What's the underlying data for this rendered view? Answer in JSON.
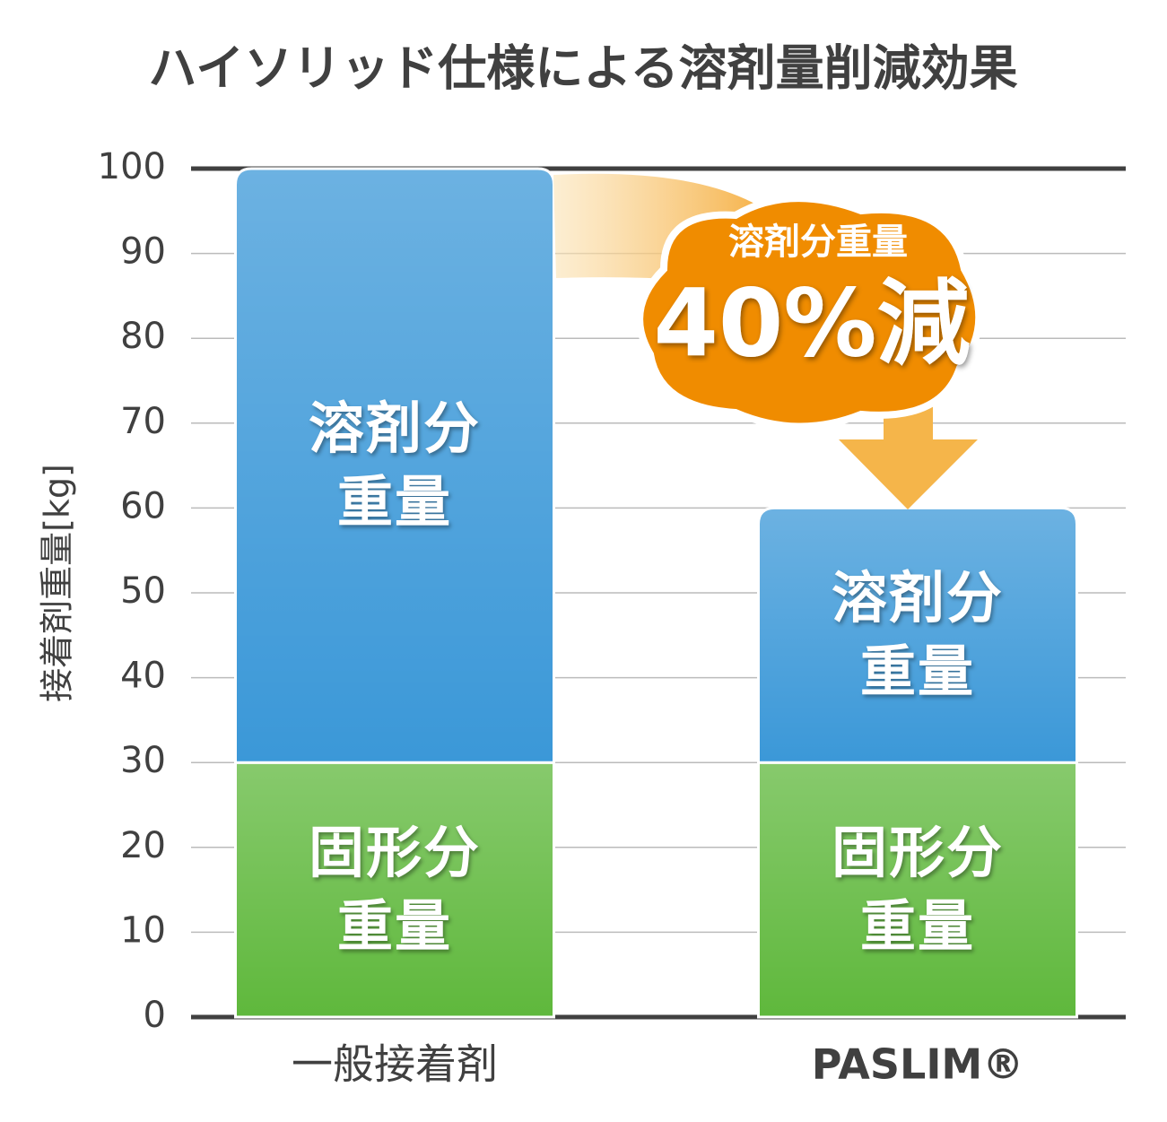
{
  "chart_data": {
    "type": "stacked_bar",
    "title": "ハイソリッド仕様による溶剤量削減効果",
    "y_label": "接着剤重量[kg]",
    "categories": [
      "一般接着剤",
      "PASLIM®"
    ],
    "series": [
      {
        "name": "固形分重量",
        "color": "#5fb83c",
        "values": [
          30,
          30
        ]
      },
      {
        "name": "溶剤分重量",
        "color": "#3b98d8",
        "values": [
          70,
          30
        ]
      }
    ],
    "ylim": [
      0,
      100
    ],
    "yticks": [
      0,
      10,
      20,
      30,
      40,
      50,
      60,
      70,
      80,
      90,
      100
    ],
    "grid": true,
    "annotation": {
      "title": "溶剤分重量",
      "text": "40%減"
    }
  }
}
